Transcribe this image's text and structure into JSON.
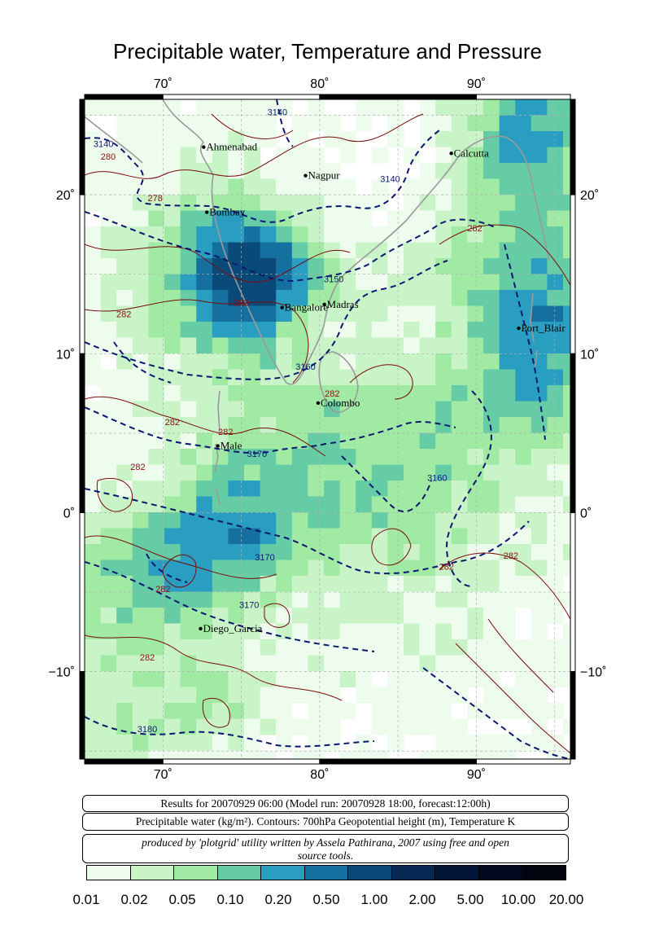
{
  "title": "Precipitable water, Temperature and Pressure",
  "map": {
    "lon_range": [
      65,
      96
    ],
    "lat_range": [
      -15.5,
      26
    ],
    "lon_ticks": [
      {
        "value": 70,
        "label": "70˚"
      },
      {
        "value": 80,
        "label": "80˚"
      },
      {
        "value": 90,
        "label": "90˚"
      }
    ],
    "lat_ticks": [
      {
        "value": 20,
        "label": "20˚"
      },
      {
        "value": 10,
        "label": "10˚"
      },
      {
        "value": 0,
        "label": "0˚"
      },
      {
        "value": -10,
        "label": "−10˚"
      }
    ],
    "cities": [
      {
        "name": "Ahmenabad",
        "lon": 72.6,
        "lat": 23.0
      },
      {
        "name": "Calcutta",
        "lon": 88.4,
        "lat": 22.6
      },
      {
        "name": "Nagpur",
        "lon": 79.1,
        "lat": 21.2
      },
      {
        "name": "Bombay",
        "lon": 72.8,
        "lat": 18.9
      },
      {
        "name": "Madras",
        "lon": 80.3,
        "lat": 13.1
      },
      {
        "name": "Bangalore",
        "lon": 77.6,
        "lat": 12.9
      },
      {
        "name": "Port_Blair",
        "lon": 92.7,
        "lat": 11.6
      },
      {
        "name": "Colombo",
        "lon": 79.9,
        "lat": 6.9
      },
      {
        "name": "Male",
        "lon": 73.5,
        "lat": 4.2
      },
      {
        "name": "Diego_Garcia",
        "lon": 72.4,
        "lat": -7.3
      }
    ],
    "height_contour_labels": [
      {
        "text": "3140",
        "lon": 66.2,
        "lat": 23.0
      },
      {
        "text": "3140",
        "lon": 77.3,
        "lat": 25.0
      },
      {
        "text": "3140",
        "lon": 84.5,
        "lat": 20.8
      },
      {
        "text": "3150",
        "lon": 80.9,
        "lat": 14.5
      },
      {
        "text": "3160",
        "lon": 79.1,
        "lat": 9.0
      },
      {
        "text": "3170",
        "lon": 76.0,
        "lat": 3.5
      },
      {
        "text": "3160",
        "lon": 87.5,
        "lat": 2.0
      },
      {
        "text": "3170",
        "lon": 76.5,
        "lat": -3.0
      },
      {
        "text": "3170",
        "lon": 75.5,
        "lat": -6.0
      },
      {
        "text": "3180",
        "lon": 69.0,
        "lat": -13.8
      }
    ],
    "temperature_contour_labels": [
      {
        "text": "280",
        "lon": 66.5,
        "lat": 22.2
      },
      {
        "text": "278",
        "lon": 69.5,
        "lat": 19.6
      },
      {
        "text": "282",
        "lon": 67.5,
        "lat": 12.3
      },
      {
        "text": "282",
        "lon": 75.0,
        "lat": 13.0
      },
      {
        "text": "282",
        "lon": 89.9,
        "lat": 17.7
      },
      {
        "text": "282",
        "lon": 80.8,
        "lat": 7.3
      },
      {
        "text": "282",
        "lon": 70.6,
        "lat": 5.5
      },
      {
        "text": "282",
        "lon": 74.0,
        "lat": 4.9
      },
      {
        "text": "282",
        "lon": 68.4,
        "lat": 2.7
      },
      {
        "text": "282",
        "lon": 88.1,
        "lat": -3.6
      },
      {
        "text": "282",
        "lon": 92.2,
        "lat": -2.9
      },
      {
        "text": "282",
        "lon": 70.0,
        "lat": -5.0
      },
      {
        "text": "282",
        "lon": 69.0,
        "lat": -9.3
      }
    ]
  },
  "info": {
    "run": "Results for 20070929 06:00 (Model run: 20070928 18:00, forecast:12:00h)",
    "variables": "Precipitable water (kg/m²).  Contours: 700hPa Geopotential height (m), Temperature K",
    "credit_line1": "produced by 'plotgrid' utility written by Assela Pathirana, 2007 using free and open",
    "credit_line2": "source tools."
  },
  "colorbar": {
    "colors": [
      "#eefcee",
      "#c8f4c8",
      "#a0eaa4",
      "#66cca6",
      "#2a9ec0",
      "#1570a0",
      "#0a4a78",
      "#062a54",
      "#041638",
      "#020a22",
      "#01040e"
    ],
    "labels": [
      "0.01",
      "0.02",
      "0.05",
      "0.10",
      "0.20",
      "0.50",
      "1.00",
      "2.00",
      "5.00",
      "10.00",
      "20.00"
    ]
  }
}
